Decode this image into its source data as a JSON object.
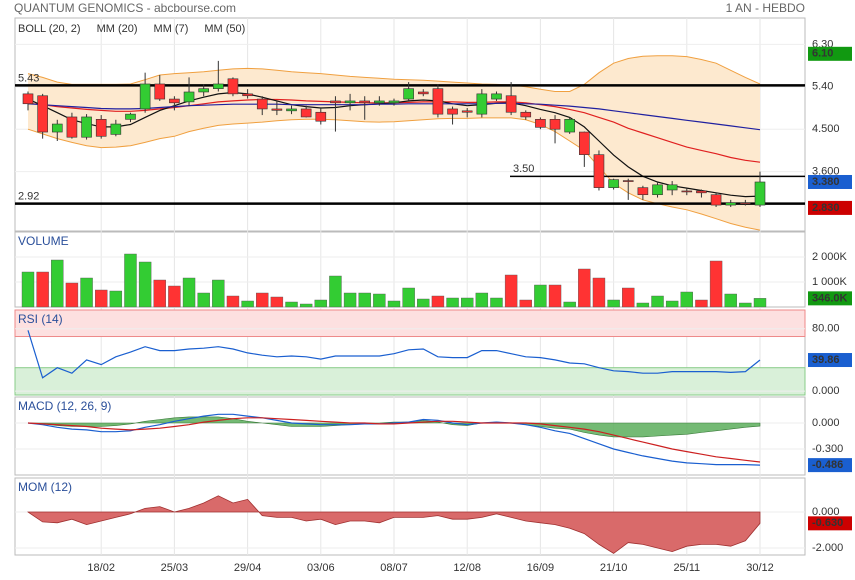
{
  "header": {
    "title": "QUANTUM GENOMICS - abcbourse.com",
    "period": "1 AN - HEBDO"
  },
  "chart_data": [
    {
      "type": "candlestick",
      "categories": [
        null,
        null,
        null,
        null,
        null,
        "18/02",
        null,
        null,
        null,
        null,
        "25/03",
        null,
        null,
        null,
        null,
        "29/04",
        null,
        null,
        null,
        null,
        "03/06",
        null,
        null,
        null,
        null,
        "08/07",
        null,
        null,
        null,
        null,
        "12/08",
        null,
        null,
        null,
        null,
        "16/09",
        null,
        null,
        null,
        null,
        "21/10",
        null,
        null,
        null,
        null,
        "25/11",
        null,
        null,
        null,
        null,
        "30/12"
      ],
      "open": [
        5.25,
        5.21,
        4.44,
        4.76,
        4.33,
        4.71,
        4.39,
        4.71,
        4.93,
        5.46,
        5.14,
        5.08,
        5.29,
        5.36,
        5.57,
        5.25,
        5.14,
        4.93,
        4.89,
        4.93,
        4.86,
        5.1,
        5.06,
        5.1,
        5.06,
        5.06,
        5.14,
        5.29,
        5.36,
        4.93,
        4.89,
        4.82,
        5.14,
        5.21,
        4.86,
        4.71,
        4.71,
        4.44,
        4.44,
        3.96,
        3.26,
        3.41,
        3.26,
        3.11,
        3.21,
        3.19,
        3.19,
        3.11,
        2.89,
        2.94,
        2.89
      ],
      "high": [
        5.3,
        5.25,
        4.7,
        4.85,
        4.82,
        4.8,
        4.7,
        4.85,
        5.7,
        5.65,
        5.2,
        5.6,
        5.45,
        5.95,
        5.6,
        5.35,
        5.2,
        5.1,
        5.0,
        5.0,
        4.95,
        5.2,
        5.25,
        5.2,
        5.2,
        5.15,
        5.5,
        5.35,
        5.45,
        4.98,
        4.95,
        5.35,
        5.3,
        5.5,
        4.9,
        4.75,
        4.8,
        4.75,
        4.45,
        4.05,
        3.45,
        3.45,
        3.3,
        3.38,
        3.4,
        3.25,
        3.22,
        3.15,
        3.0,
        3.0,
        3.6
      ],
      "low": [
        4.9,
        4.3,
        4.25,
        4.3,
        4.28,
        4.3,
        4.35,
        4.65,
        4.85,
        5.1,
        4.9,
        5.0,
        5.2,
        5.3,
        5.2,
        5.15,
        4.8,
        4.8,
        4.82,
        4.75,
        4.6,
        4.45,
        4.9,
        4.7,
        5.0,
        5.0,
        5.1,
        5.2,
        4.75,
        4.6,
        4.75,
        4.75,
        5.1,
        4.8,
        4.7,
        4.5,
        4.2,
        4.4,
        3.7,
        3.2,
        3.22,
        3.0,
        3.0,
        3.05,
        3.1,
        3.1,
        3.05,
        2.85,
        2.85,
        2.88,
        2.85
      ],
      "close": [
        5.04,
        4.44,
        4.61,
        4.33,
        4.76,
        4.35,
        4.61,
        4.82,
        5.46,
        5.14,
        5.06,
        5.29,
        5.36,
        5.46,
        5.25,
        5.21,
        4.93,
        4.9,
        4.93,
        4.76,
        4.67,
        5.06,
        5.1,
        5.06,
        5.1,
        5.1,
        5.36,
        5.25,
        4.82,
        4.82,
        4.86,
        5.25,
        5.25,
        4.86,
        4.76,
        4.54,
        4.5,
        4.71,
        3.96,
        3.26,
        3.43,
        3.39,
        3.11,
        3.32,
        3.32,
        3.17,
        3.15,
        2.89,
        2.94,
        2.92,
        3.38
      ],
      "up_color": "#33cc33",
      "down_color": "#ff3333",
      "series": [
        {
          "name": "BOLL (20, 2)",
          "color": "#f0a040",
          "fill": "#fde9cf",
          "upper": [
            5.68,
            5.6,
            5.5,
            5.45,
            5.45,
            5.45,
            5.45,
            5.46,
            5.55,
            5.65,
            5.68,
            5.7,
            5.72,
            5.75,
            5.78,
            5.79,
            5.78,
            5.75,
            5.72,
            5.7,
            5.68,
            5.65,
            5.62,
            5.6,
            5.58,
            5.56,
            5.55,
            5.54,
            5.52,
            5.5,
            5.48,
            5.46,
            5.45,
            5.44,
            5.4,
            5.35,
            5.3,
            5.3,
            5.45,
            5.7,
            5.9,
            6.0,
            6.05,
            6.06,
            6.06,
            6.04,
            5.98,
            5.9,
            5.75,
            5.6,
            5.46
          ],
          "lower": [
            4.5,
            4.4,
            4.3,
            4.22,
            4.15,
            4.11,
            4.12,
            4.15,
            4.22,
            4.3,
            4.35,
            4.45,
            4.52,
            4.58,
            4.61,
            4.63,
            4.65,
            4.68,
            4.7,
            4.71,
            4.71,
            4.7,
            4.68,
            4.66,
            4.65,
            4.66,
            4.68,
            4.7,
            4.72,
            4.73,
            4.73,
            4.74,
            4.74,
            4.74,
            4.7,
            4.6,
            4.45,
            4.25,
            4.05,
            3.7,
            3.35,
            3.15,
            3.0,
            2.92,
            2.85,
            2.79,
            2.7,
            2.6,
            2.5,
            2.42,
            2.36
          ]
        },
        {
          "name": "MM (20)",
          "color": "#e02020",
          "values": [
            5.05,
            5.02,
            4.98,
            4.95,
            4.92,
            4.9,
            4.88,
            4.88,
            4.9,
            4.93,
            4.96,
            5.0,
            5.04,
            5.08,
            5.1,
            5.12,
            5.13,
            5.13,
            5.12,
            5.1,
            5.09,
            5.08,
            5.07,
            5.06,
            5.06,
            5.06,
            5.07,
            5.08,
            5.08,
            5.08,
            5.07,
            5.07,
            5.08,
            5.08,
            5.06,
            5.02,
            4.98,
            4.92,
            4.85,
            4.75,
            4.65,
            4.52,
            4.42,
            4.32,
            4.22,
            4.12,
            4.05,
            3.98,
            3.9,
            3.84,
            3.8
          ]
        },
        {
          "name": "MM (7)",
          "color": "#111111",
          "values": [
            5.14,
            5.0,
            4.85,
            4.7,
            4.62,
            4.55,
            4.55,
            4.6,
            4.75,
            4.9,
            5.0,
            5.1,
            5.18,
            5.25,
            5.28,
            5.25,
            5.18,
            5.1,
            5.02,
            4.98,
            4.95,
            4.96,
            5.0,
            5.02,
            5.04,
            5.06,
            5.1,
            5.12,
            5.1,
            5.04,
            5.0,
            5.02,
            5.05,
            5.06,
            5.0,
            4.92,
            4.85,
            4.75,
            4.55,
            4.25,
            3.95,
            3.7,
            3.5,
            3.38,
            3.3,
            3.25,
            3.2,
            3.15,
            3.1,
            3.07,
            3.08
          ]
        },
        {
          "name": "MM (50)",
          "color": "#2020a0",
          "values": [
            5.04,
            5.02,
            5.0,
            4.98,
            4.96,
            4.94,
            4.93,
            4.93,
            4.94,
            4.96,
            4.98,
            5.0,
            5.01,
            5.02,
            5.03,
            5.03,
            5.03,
            5.03,
            5.02,
            5.02,
            5.02,
            5.02,
            5.02,
            5.02,
            5.03,
            5.03,
            5.04,
            5.04,
            5.04,
            5.04,
            5.04,
            5.04,
            5.05,
            5.05,
            5.04,
            5.03,
            5.01,
            4.99,
            4.96,
            4.93,
            4.89,
            4.85,
            4.81,
            4.77,
            4.73,
            4.69,
            4.65,
            4.61,
            4.57,
            4.53,
            4.49
          ]
        }
      ],
      "levels": [
        {
          "value": 5.43,
          "label": "5.43"
        },
        {
          "value": 3.5,
          "label": "3.50"
        },
        {
          "value": 2.92,
          "label": "2.92"
        }
      ],
      "markers": [
        {
          "value": 6.1,
          "label": "6.10",
          "color": "#119911"
        },
        {
          "value": 3.38,
          "label": "3.380",
          "color": "#1a5fd0"
        },
        {
          "value": 2.83,
          "label": "2.830",
          "color": "#cc0000"
        }
      ],
      "ylim": [
        2.34,
        6.86
      ],
      "yticks": [
        {
          "value": 6.3,
          "label": "6.30"
        },
        {
          "value": 5.4,
          "label": "5.40"
        },
        {
          "value": 4.5,
          "label": "4.500"
        },
        {
          "value": 3.6,
          "label": "3.600"
        }
      ]
    },
    {
      "type": "bar",
      "title": "VOLUME",
      "values": [
        1400,
        1400,
        1880,
        960,
        1160,
        680,
        640,
        2120,
        1800,
        1080,
        840,
        1160,
        560,
        1080,
        440,
        240,
        560,
        400,
        200,
        120,
        280,
        1240,
        560,
        560,
        520,
        240,
        760,
        320,
        440,
        360,
        360,
        560,
        360,
        1280,
        280,
        880,
        880,
        200,
        1520,
        1160,
        280,
        760,
        160,
        440,
        240,
        600,
        280,
        1840,
        520,
        160,
        346
      ],
      "colors": [
        "#33cc33",
        "#ff3333",
        "#33cc33",
        "#ff3333",
        "#33cc33",
        "#ff3333",
        "#33cc33",
        "#33cc33",
        "#33cc33",
        "#ff3333",
        "#ff3333",
        "#33cc33",
        "#33cc33",
        "#33cc33",
        "#ff3333",
        "#33cc33",
        "#ff3333",
        "#ff3333",
        "#33cc33",
        "#33cc33",
        "#33cc33",
        "#33cc33",
        "#33cc33",
        "#33cc33",
        "#33cc33",
        "#33cc33",
        "#33cc33",
        "#33cc33",
        "#ff3333",
        "#33cc33",
        "#33cc33",
        "#33cc33",
        "#33cc33",
        "#ff3333",
        "#ff3333",
        "#33cc33",
        "#ff3333",
        "#33cc33",
        "#ff3333",
        "#ff3333",
        "#33cc33",
        "#ff3333",
        "#33cc33",
        "#33cc33",
        "#33cc33",
        "#33cc33",
        "#ff3333",
        "#ff3333",
        "#33cc33",
        "#33cc33",
        "#33cc33"
      ],
      "markers": [
        {
          "value": 346,
          "label": "346.0K",
          "color": "#119911"
        }
      ],
      "ylim": [
        0,
        3000
      ],
      "yticks": [
        {
          "value": 2000,
          "label": "2 000K"
        },
        {
          "value": 1000,
          "label": "1 000K"
        }
      ]
    },
    {
      "type": "line",
      "title": "RSI (14)",
      "color": "#1a5fd0",
      "values": [
        78,
        17,
        30,
        23,
        40,
        34,
        44,
        50,
        57,
        52,
        52,
        54,
        55,
        57,
        54,
        49,
        46,
        44,
        45,
        44,
        41,
        45,
        45,
        45,
        45,
        48,
        53,
        54,
        44,
        43,
        43,
        52,
        52,
        48,
        44,
        43,
        40,
        36,
        35,
        30,
        26,
        25,
        23,
        23,
        25,
        25,
        25,
        25,
        24,
        25,
        39.86
      ],
      "overbought": 70,
      "oversold": 30,
      "markers": [
        {
          "value": 39.86,
          "label": "39.86",
          "color": "#1a5fd0"
        }
      ],
      "ylim": [
        -5,
        104
      ],
      "yticks": [
        {
          "value": 80,
          "label": "80.00"
        },
        {
          "value": 0,
          "label": "0.000"
        }
      ]
    },
    {
      "type": "macd",
      "title": "MACD (12, 26, 9)",
      "series": [
        {
          "color": "#1a5fd0",
          "values": [
            0.0,
            -0.02,
            -0.05,
            -0.07,
            -0.08,
            -0.1,
            -0.1,
            -0.09,
            -0.05,
            -0.02,
            0.02,
            0.05,
            0.08,
            0.1,
            0.1,
            0.08,
            0.06,
            0.03,
            0.0,
            -0.01,
            -0.02,
            -0.02,
            -0.02,
            -0.01,
            -0.01,
            0.0,
            0.01,
            0.04,
            0.03,
            0.0,
            -0.02,
            0.0,
            0.01,
            0.0,
            -0.02,
            -0.05,
            -0.09,
            -0.12,
            -0.18,
            -0.24,
            -0.3,
            -0.34,
            -0.38,
            -0.41,
            -0.44,
            -0.46,
            -0.47,
            -0.48,
            -0.48,
            -0.48,
            -0.486
          ]
        },
        {
          "color": "#cc2020",
          "values": [
            0.0,
            -0.01,
            -0.02,
            -0.03,
            -0.04,
            -0.06,
            -0.07,
            -0.08,
            -0.07,
            -0.06,
            -0.04,
            -0.02,
            0.01,
            0.03,
            0.05,
            0.06,
            0.06,
            0.05,
            0.04,
            0.03,
            0.02,
            0.01,
            0.0,
            0.0,
            -0.01,
            -0.01,
            0.0,
            0.01,
            0.02,
            0.02,
            0.01,
            0.0,
            0.0,
            0.0,
            0.0,
            -0.01,
            -0.03,
            -0.05,
            -0.07,
            -0.1,
            -0.14,
            -0.18,
            -0.22,
            -0.26,
            -0.3,
            -0.33,
            -0.36,
            -0.39,
            -0.41,
            -0.43,
            -0.45
          ]
        }
      ],
      "histogram": {
        "color": "#5cae5c",
        "values": [
          0,
          -0.01,
          -0.03,
          -0.04,
          -0.04,
          -0.04,
          -0.03,
          -0.01,
          0.02,
          0.04,
          0.06,
          0.07,
          0.07,
          0.07,
          0.05,
          0.02,
          0,
          -0.02,
          -0.04,
          -0.04,
          -0.04,
          -0.03,
          -0.02,
          -0.01,
          0,
          0.01,
          0.01,
          0.03,
          0.01,
          -0.02,
          -0.03,
          0,
          0.01,
          0,
          -0.02,
          -0.04,
          -0.06,
          -0.07,
          -0.11,
          -0.14,
          -0.16,
          -0.16,
          -0.16,
          -0.15,
          -0.14,
          -0.13,
          -0.11,
          -0.09,
          -0.07,
          -0.05,
          -0.036
        ]
      },
      "markers": [
        {
          "value": -0.486,
          "label": "-0.486",
          "color": "#1a5fd0"
        }
      ],
      "ylim": [
        -0.6,
        0.3
      ],
      "yticks": [
        {
          "value": 0,
          "label": "0.000"
        },
        {
          "value": -0.3,
          "label": "-0.300"
        }
      ]
    },
    {
      "type": "area",
      "title": "MOM (12)",
      "color": "#d96a6a",
      "values": [
        0,
        -0.55,
        -0.6,
        -0.4,
        -0.7,
        -0.5,
        -0.3,
        -0.1,
        0.2,
        0.3,
        0.0,
        0.2,
        0.5,
        0.9,
        0.5,
        0.7,
        -0.2,
        -0.3,
        -0.3,
        -0.5,
        -0.4,
        -0.7,
        -0.5,
        -0.5,
        -0.6,
        -0.3,
        -0.3,
        -0.3,
        -0.2,
        -0.4,
        -0.4,
        -0.3,
        -0.1,
        -0.3,
        -0.5,
        -0.6,
        -0.7,
        -0.9,
        -1.2,
        -1.8,
        -2.3,
        -1.7,
        -1.8,
        -2.0,
        -2.2,
        -1.9,
        -1.8,
        -1.8,
        -1.9,
        -1.6,
        -0.63
      ],
      "markers": [
        {
          "value": -0.63,
          "label": "-0.630",
          "color": "#cc0000"
        }
      ],
      "ylim": [
        -2.39,
        1.89
      ],
      "yticks": [
        {
          "value": 0,
          "label": "0.000"
        },
        {
          "value": -2,
          "label": "-2.000"
        }
      ]
    }
  ]
}
